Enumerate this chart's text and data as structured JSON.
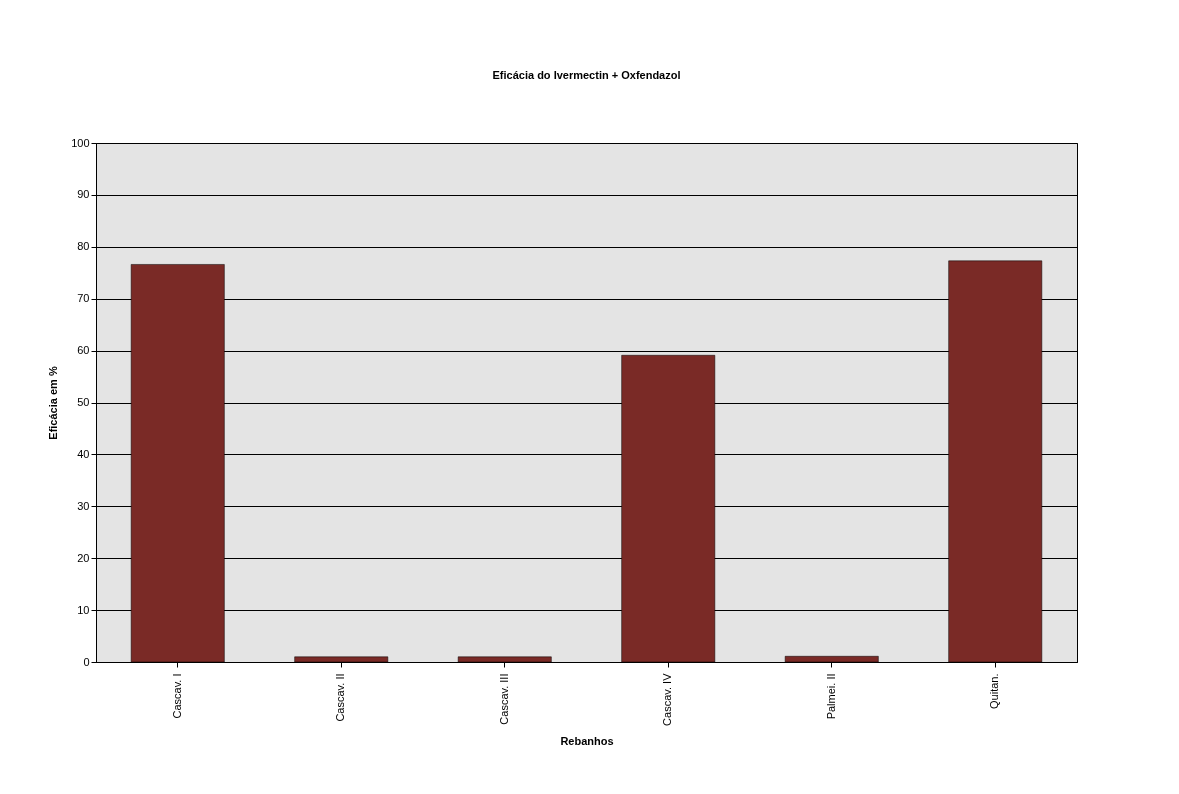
{
  "chart_data": {
    "type": "bar",
    "title": "Eficácia do Ivermectin + Oxfendazol",
    "xlabel": "Rebanhos",
    "ylabel": "Eficácia em %",
    "categories": [
      "Cascav. I",
      "Cascav. II",
      "Cascav. III",
      "Cascav. IV",
      "Palmei. II",
      "Quitan."
    ],
    "values": [
      76.6,
      1,
      1,
      59.1,
      1.1,
      77.3
    ],
    "color": "#7a2a26",
    "ylim": [
      0,
      100
    ],
    "yticks": [
      0,
      10,
      20,
      30,
      40,
      50,
      60,
      70,
      80,
      90,
      100
    ],
    "grid": "y"
  }
}
